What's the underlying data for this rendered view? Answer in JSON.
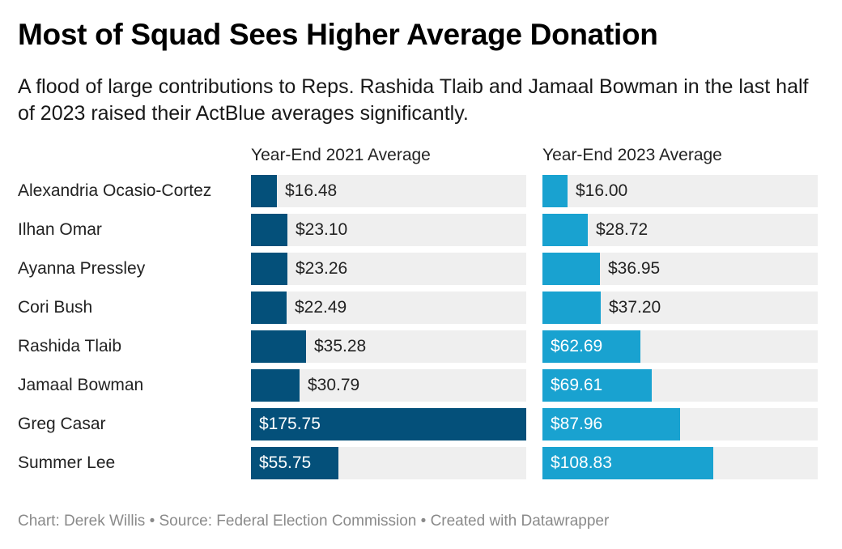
{
  "title": "Most of Squad Sees Higher Average Donation",
  "subtitle": "A flood of large contributions to Reps. Rashida Tlaib and Jamaal Bowman in the last half of 2023 raised their ActBlue averages significantly.",
  "footer": {
    "text": "Chart: Derek Willis • Source: Federal Election Commission • Created with Datawrapper"
  },
  "colors": {
    "series_2021": "#04507a",
    "series_2023": "#19a2d0",
    "track": "#efefef"
  },
  "chart_data": {
    "type": "bar",
    "orientation": "horizontal",
    "categories": [
      "Alexandria Ocasio-Cortez",
      "Ilhan Omar",
      "Ayanna Pressley",
      "Cori Bush",
      "Rashida Tlaib",
      "Jamaal Bowman",
      "Greg Casar",
      "Summer Lee"
    ],
    "series": [
      {
        "name": "Year-End 2021 Average",
        "values": [
          16.48,
          23.1,
          23.26,
          22.49,
          35.28,
          30.79,
          175.75,
          55.75
        ],
        "labels": [
          "$16.48",
          "$23.10",
          "$23.26",
          "$22.49",
          "$35.28",
          "$30.79",
          "$175.75",
          "$55.75"
        ]
      },
      {
        "name": "Year-End 2023 Average",
        "values": [
          16.0,
          28.72,
          36.95,
          37.2,
          62.69,
          69.61,
          87.96,
          108.83
        ],
        "labels": [
          "$16.00",
          "$28.72",
          "$36.95",
          "$37.20",
          "$62.69",
          "$69.61",
          "$87.96",
          "$108.83"
        ]
      }
    ],
    "xlim": [
      0,
      175.75
    ],
    "grid": false
  }
}
